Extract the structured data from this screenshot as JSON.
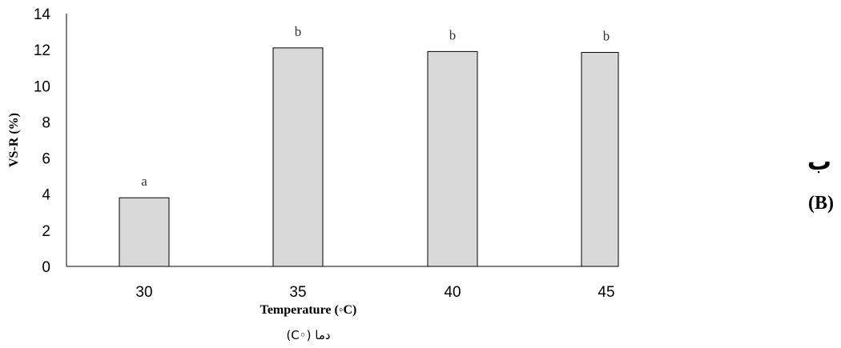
{
  "chart_data": {
    "type": "bar",
    "categories": [
      "30",
      "35",
      "40",
      "45"
    ],
    "values": [
      3.8,
      12.1,
      11.9,
      11.85
    ],
    "significance_letters": [
      "a",
      "b",
      "b",
      "b"
    ],
    "title": "",
    "xlabel": "Temperature (◦C)",
    "xlabel_fa": "دما (◦C)",
    "ylabel": "VS-R (%)",
    "ylim": [
      0,
      14
    ],
    "yticks": [
      0,
      2,
      4,
      6,
      8,
      10,
      12,
      14
    ],
    "grid": false,
    "bar_color": "#d9d9d9",
    "bar_edge_color": "#000000"
  },
  "panel": {
    "letter_fa": "ب",
    "label": "(B)"
  }
}
